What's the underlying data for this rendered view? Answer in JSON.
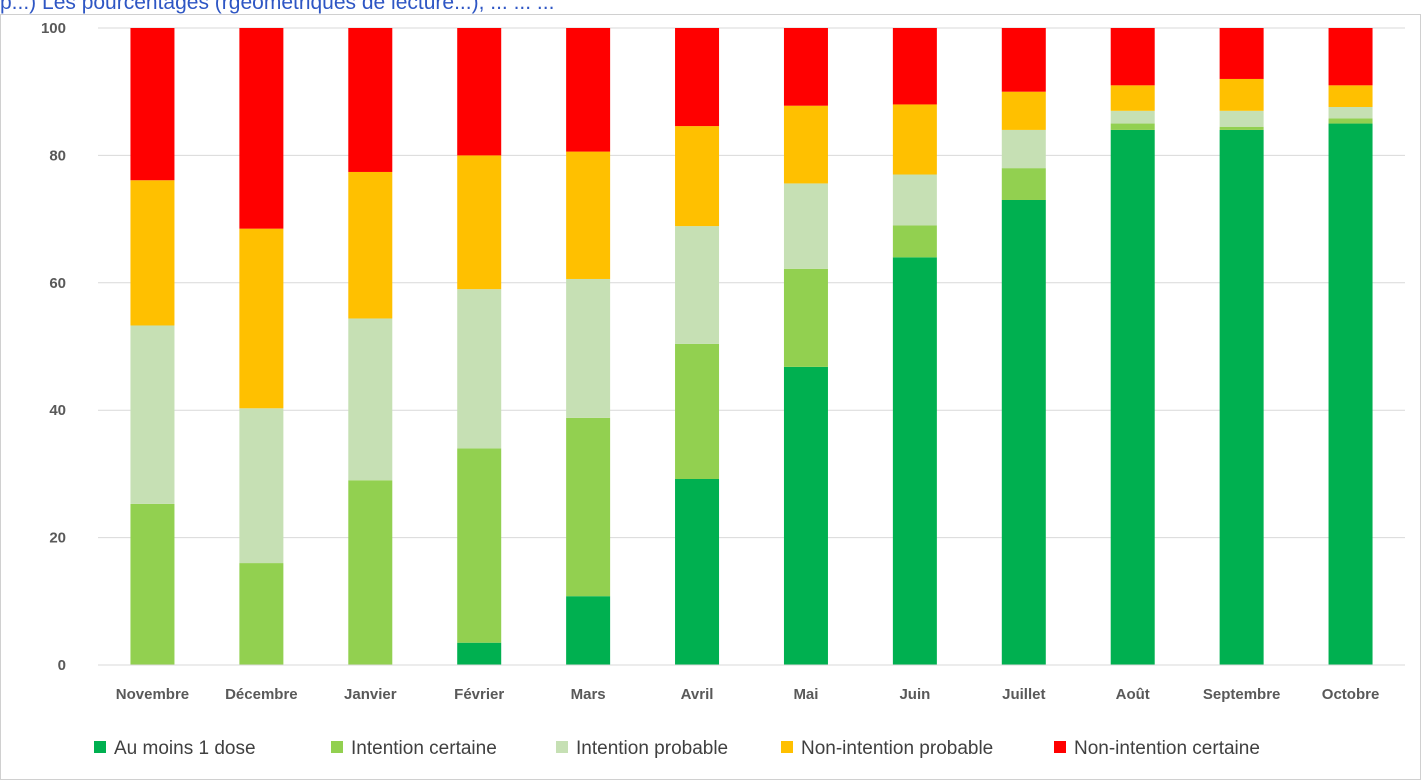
{
  "caption": "p...) Les pourcentages (rgéométriques de lecture...), ... ... ...",
  "chart_data": {
    "type": "bar",
    "stacked": true,
    "categories": [
      "Novembre",
      "Décembre",
      "Janvier",
      "Février",
      "Mars",
      "Avril",
      "Mai",
      "Juin",
      "Juillet",
      "Août",
      "Septembre",
      "Octobre"
    ],
    "series": [
      {
        "name": "Au moins 1 dose",
        "color": "#00b050",
        "values": [
          0,
          0,
          0,
          3.5,
          10.8,
          29.2,
          46.8,
          64,
          73,
          84,
          84,
          85
        ]
      },
      {
        "name": "Intention certaine",
        "color": "#92d050",
        "values": [
          25.3,
          16,
          29,
          30.5,
          28,
          21.2,
          15.4,
          5,
          5,
          1,
          0.5,
          0.8
        ]
      },
      {
        "name": "Intention probable",
        "color": "#c6e0b4",
        "values": [
          28,
          24.3,
          25.4,
          25,
          21.8,
          18.5,
          13.4,
          8,
          6,
          2,
          2.5,
          1.8
        ]
      },
      {
        "name": "Non-intention probable",
        "color": "#ffc000",
        "values": [
          22.8,
          28.2,
          23,
          21,
          20,
          15.7,
          12.2,
          11,
          6,
          4,
          5,
          3.4
        ]
      },
      {
        "name": "Non-intention certaine",
        "color": "#ff0000",
        "values": [
          23.9,
          31.5,
          22.6,
          20,
          19.4,
          15.4,
          12.2,
          12,
          10,
          9,
          8,
          9
        ]
      }
    ],
    "ylim": [
      0,
      100
    ],
    "yticks": [
      0,
      20,
      40,
      60,
      80,
      100
    ],
    "grid": true,
    "legend_position": "bottom"
  }
}
